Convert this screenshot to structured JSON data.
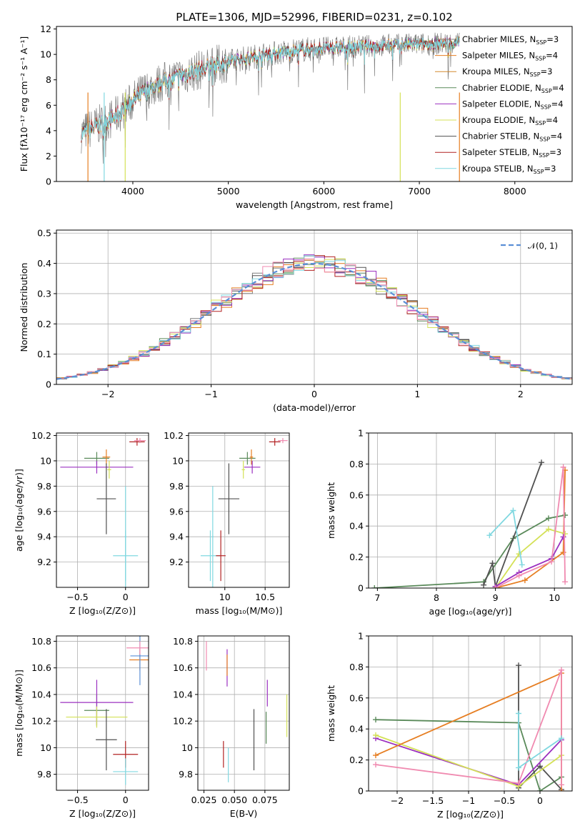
{
  "chart_data": [
    {
      "id": "spectrum",
      "type": "line",
      "title": "PLATE=1306, MJD=52996, FIBERID=0231, z=0.102",
      "xlabel": "wavelength [Angstrom, rest frame]",
      "ylabel": "Flux [fλ10⁻¹⁷ erg cm⁻² s⁻¹ A⁻¹]",
      "xlim": [
        3200,
        8600
      ],
      "ylim": [
        0,
        12.2
      ],
      "xticks": [
        4000,
        5000,
        6000,
        7000,
        8000
      ],
      "yticks": [
        0,
        2,
        4,
        6,
        8,
        10,
        12
      ],
      "legend_position": "right",
      "data_wavelength_range": [
        3460,
        7420
      ],
      "continuum": {
        "x": [
          3460,
          3600,
          3800,
          3950,
          4100,
          4300,
          4500,
          4800,
          5100,
          5400,
          5700,
          6000,
          6300,
          6600,
          7000,
          7420
        ],
        "y": [
          3.8,
          4.3,
          5.0,
          6.0,
          7.0,
          7.8,
          8.3,
          9.0,
          9.6,
          10.0,
          10.3,
          10.5,
          10.6,
          10.7,
          10.8,
          10.9
        ]
      },
      "series": [
        {
          "name": "Chabrier MILES, N",
          "sub": "SSP",
          "suffix": "=3",
          "color": "#7f7f7f"
        },
        {
          "name": "Salpeter MILES, N",
          "sub": "SSP",
          "suffix": "=4",
          "color": "#e67e22"
        },
        {
          "name": "Kroupa MILES, N",
          "sub": "SSP",
          "suffix": "=3",
          "color": "#d48a2f"
        },
        {
          "name": "Chabrier ELODIE, N",
          "sub": "SSP",
          "suffix": "=4",
          "color": "#5a8a5a"
        },
        {
          "name": "Salpeter ELODIE, N",
          "sub": "SSP",
          "suffix": "=4",
          "color": "#9b30c0"
        },
        {
          "name": "Kroupa ELODIE, N",
          "sub": "SSP",
          "suffix": "=4",
          "color": "#d4e157"
        },
        {
          "name": "Chabrier STELIB, N",
          "sub": "SSP",
          "suffix": "=4",
          "color": "#505050"
        },
        {
          "name": "Salpeter STELIB, N",
          "sub": "SSP",
          "suffix": "=3",
          "color": "#b22222"
        },
        {
          "name": "Kroupa STELIB, N",
          "sub": "SSP",
          "suffix": "=3",
          "color": "#80d8e0"
        }
      ]
    },
    {
      "id": "residuals",
      "type": "step",
      "xlabel": "(data-model)/error",
      "ylabel": "Normed distribution",
      "xlim": [
        -2.5,
        2.5
      ],
      "ylim": [
        0,
        0.51
      ],
      "xticks": [
        -2,
        -1,
        0,
        1,
        2
      ],
      "yticks": [
        0.0,
        0.1,
        0.2,
        0.3,
        0.4,
        0.5
      ],
      "bin_width": 0.1,
      "gaussian_label": "𝒩(0, 1)",
      "gaussian_color": "#5b8fd6",
      "legend_position": "upper right",
      "histograms": [
        {
          "color": "#7f7f7f",
          "offset": 0.0
        },
        {
          "color": "#e67e22",
          "offset": 0.015
        },
        {
          "color": "#5a8a5a",
          "offset": -0.012
        },
        {
          "color": "#9b30c0",
          "offset": 0.02
        },
        {
          "color": "#d4e157",
          "offset": -0.018
        },
        {
          "color": "#505050",
          "offset": 0.01
        },
        {
          "color": "#b22222",
          "offset": -0.008
        },
        {
          "color": "#80d8e0",
          "offset": 0.005
        },
        {
          "color": "#f08ab0",
          "offset": -0.015
        }
      ]
    },
    {
      "id": "Z_age",
      "type": "errorbar",
      "xlabel": "Z [log₁₀(Z/Z⊙)]",
      "ylabel": "age  [log₁₀(age/yr)]",
      "xlim": [
        -0.72,
        0.24
      ],
      "ylim": [
        9.0,
        10.22
      ],
      "xticks": [
        -0.5,
        0.0
      ],
      "yticks": [
        9.2,
        9.4,
        9.6,
        9.8,
        10.0,
        10.2
      ],
      "points": [
        {
          "x": -0.3,
          "xerr": 0.13,
          "y": 10.02,
          "yerr": 0.05,
          "color": "#5a8a5a"
        },
        {
          "x": -0.2,
          "xerr": 0.04,
          "y": 10.03,
          "yerr": 0.06,
          "color": "#e67e22"
        },
        {
          "x": -0.3,
          "xerr": 0.38,
          "y": 9.95,
          "yerr": 0.05,
          "color": "#9b30c0"
        },
        {
          "x": -0.17,
          "xerr": 0.02,
          "y": 9.93,
          "yerr": 0.07,
          "color": "#d4e157"
        },
        {
          "x": -0.2,
          "xerr": 0.1,
          "y": 9.7,
          "yerr": 0.28,
          "color": "#505050"
        },
        {
          "x": 0.12,
          "xerr": 0.08,
          "y": 10.15,
          "yerr": 0.03,
          "color": "#b22222"
        },
        {
          "x": 0.15,
          "xerr": 0.06,
          "y": 10.16,
          "yerr": 0.02,
          "color": "#f08ab0"
        },
        {
          "x": 0.0,
          "xerr": 0.13,
          "y": 9.25,
          "yerr": 0.2,
          "color": "#80d8e0"
        },
        {
          "x": 0.0,
          "xerr": 0.01,
          "y": 9.4,
          "yerr": 0.4,
          "color": "#80d8e0"
        }
      ]
    },
    {
      "id": "mass_age",
      "type": "errorbar",
      "xlabel": "mass [log₁₀(M/M⊙)]",
      "ylabel": "",
      "xlim": [
        9.55,
        10.8
      ],
      "ylim": [
        9.0,
        10.22
      ],
      "xticks": [
        10.0,
        10.5
      ],
      "yticks": [
        9.2,
        9.4,
        9.6,
        9.8,
        10.0,
        10.2
      ],
      "points": [
        {
          "x": 10.28,
          "xerr": 0.1,
          "y": 10.02,
          "yerr": 0.05,
          "color": "#5a8a5a"
        },
        {
          "x": 10.33,
          "xerr": 0.02,
          "y": 10.03,
          "yerr": 0.06,
          "color": "#e67e22"
        },
        {
          "x": 10.34,
          "xerr": 0.1,
          "y": 9.95,
          "yerr": 0.05,
          "color": "#9b30c0"
        },
        {
          "x": 10.23,
          "xerr": 0.02,
          "y": 9.93,
          "yerr": 0.07,
          "color": "#d4e157"
        },
        {
          "x": 10.05,
          "xerr": 0.13,
          "y": 9.7,
          "yerr": 0.28,
          "color": "#505050"
        },
        {
          "x": 10.62,
          "xerr": 0.07,
          "y": 10.15,
          "yerr": 0.03,
          "color": "#b22222"
        },
        {
          "x": 10.72,
          "xerr": 0.06,
          "y": 10.16,
          "yerr": 0.02,
          "color": "#f08ab0"
        },
        {
          "x": 9.82,
          "xerr": 0.12,
          "y": 9.25,
          "yerr": 0.2,
          "color": "#80d8e0"
        },
        {
          "x": 9.95,
          "xerr": 0.06,
          "y": 9.25,
          "yerr": 0.2,
          "color": "#b22222"
        },
        {
          "x": 9.85,
          "xerr": 0.01,
          "y": 9.4,
          "yerr": 0.4,
          "color": "#80d8e0"
        }
      ]
    },
    {
      "id": "age_weight",
      "type": "line",
      "xlabel": "age  [log₁₀(age/yr)]",
      "ylabel": "mass weight",
      "xlim": [
        6.85,
        10.3
      ],
      "ylim": [
        0,
        1.0
      ],
      "xticks": [
        7,
        8,
        9,
        10
      ],
      "yticks": [
        0.0,
        0.2,
        0.4,
        0.6,
        0.8,
        1.0
      ],
      "series": [
        {
          "color": "#5a8a5a",
          "x": [
            6.95,
            8.8,
            9.3,
            9.9,
            10.18
          ],
          "y": [
            0.0,
            0.04,
            0.32,
            0.45,
            0.47
          ]
        },
        {
          "color": "#505050",
          "x": [
            8.8,
            8.95,
            9.0,
            9.78
          ],
          "y": [
            0.02,
            0.16,
            0.01,
            0.81
          ]
        },
        {
          "color": "#e67e22",
          "x": [
            9.0,
            9.5,
            10.15,
            10.18
          ],
          "y": [
            0.0,
            0.05,
            0.23,
            0.76
          ]
        },
        {
          "color": "#d4e157",
          "x": [
            9.0,
            9.4,
            9.9,
            10.18
          ],
          "y": [
            0.0,
            0.22,
            0.38,
            0.35
          ]
        },
        {
          "color": "#9b30c0",
          "x": [
            9.0,
            9.4,
            9.95,
            10.15
          ],
          "y": [
            0.01,
            0.1,
            0.19,
            0.33
          ]
        },
        {
          "color": "#f08ab0",
          "x": [
            9.0,
            9.4,
            9.95,
            10.15,
            10.18
          ],
          "y": [
            0.0,
            0.08,
            0.17,
            0.78,
            0.04
          ]
        },
        {
          "color": "#80d8e0",
          "x": [
            8.9,
            9.3,
            9.45
          ],
          "y": [
            0.34,
            0.5,
            0.15
          ]
        }
      ]
    },
    {
      "id": "Z_mass",
      "type": "errorbar",
      "xlabel": "Z [log₁₀(Z/Z⊙)]",
      "ylabel": "mass [log₁₀(M/M⊙)]",
      "xlim": [
        -0.72,
        0.24
      ],
      "ylim": [
        9.68,
        10.84
      ],
      "xticks": [
        -0.5,
        0.0
      ],
      "yticks": [
        9.8,
        10.0,
        10.2,
        10.4,
        10.6,
        10.8
      ],
      "points": [
        {
          "x": -0.3,
          "xerr": 0.13,
          "y": 10.28,
          "yerr": 0.12,
          "color": "#5a8a5a"
        },
        {
          "x": -0.3,
          "xerr": 0.38,
          "y": 10.34,
          "yerr": 0.17,
          "color": "#9b30c0"
        },
        {
          "x": -0.3,
          "xerr": 0.32,
          "y": 10.23,
          "yerr": 0.08,
          "color": "#d4e157"
        },
        {
          "x": -0.2,
          "xerr": 0.11,
          "y": 10.06,
          "yerr": 0.23,
          "color": "#505050"
        },
        {
          "x": 0.0,
          "xerr": 0.13,
          "y": 9.95,
          "yerr": 0.1,
          "color": "#b22222"
        },
        {
          "x": 0.0,
          "xerr": 0.13,
          "y": 9.82,
          "yerr": 0.1,
          "color": "#80d8e0"
        },
        {
          "x": 0.15,
          "xerr": 0.11,
          "y": 10.66,
          "yerr": 0.08,
          "color": "#e67e22"
        },
        {
          "x": 0.15,
          "xerr": 0.1,
          "y": 10.69,
          "yerr": 0.22,
          "color": "#5b8fd6"
        },
        {
          "x": 0.15,
          "xerr": 0.14,
          "y": 10.75,
          "yerr": 0.05,
          "color": "#f08ab0"
        }
      ]
    },
    {
      "id": "ebv_mass",
      "type": "errorbar",
      "xlabel": "E(B-V)",
      "ylabel": "",
      "xlim": [
        0.02,
        0.095
      ],
      "ylim": [
        9.68,
        10.84
      ],
      "xticks": [
        0.025,
        0.05,
        0.075
      ],
      "xtick_labels": [
        "0.025",
        "0.050",
        "0.075"
      ],
      "yticks": [
        9.8,
        10.0,
        10.2,
        10.4,
        10.6,
        10.8
      ],
      "points": [
        {
          "x": 0.027,
          "xerr": 0.0,
          "y": 10.69,
          "yerr": 0.11,
          "color": "#f08ab0"
        },
        {
          "x": 0.044,
          "xerr": 0.0,
          "y": 10.6,
          "yerr": 0.14,
          "color": "#9b30c0"
        },
        {
          "x": 0.044,
          "xerr": 0.0,
          "y": 10.62,
          "yerr": 0.08,
          "color": "#e67e22"
        },
        {
          "x": 0.041,
          "xerr": 0.0,
          "y": 9.95,
          "yerr": 0.1,
          "color": "#b22222"
        },
        {
          "x": 0.045,
          "xerr": 0.0,
          "y": 9.87,
          "yerr": 0.13,
          "color": "#80d8e0"
        },
        {
          "x": 0.066,
          "xerr": 0.0,
          "y": 10.06,
          "yerr": 0.23,
          "color": "#505050"
        },
        {
          "x": 0.077,
          "xerr": 0.0,
          "y": 10.41,
          "yerr": 0.1,
          "color": "#9b30c0"
        },
        {
          "x": 0.076,
          "xerr": 0.0,
          "y": 10.15,
          "yerr": 0.12,
          "color": "#5a8a5a"
        },
        {
          "x": 0.093,
          "xerr": 0.0,
          "y": 10.24,
          "yerr": 0.16,
          "color": "#d4e157"
        }
      ]
    },
    {
      "id": "Z_weight",
      "type": "line",
      "xlabel": "Z [log₁₀(Z/Z⊙)]",
      "ylabel": "mass weight",
      "xlim": [
        -2.4,
        0.45
      ],
      "ylim": [
        0,
        1.0
      ],
      "xticks": [
        -2.0,
        -1.5,
        -1.0,
        -0.5,
        0.0
      ],
      "yticks": [
        0.0,
        0.2,
        0.4,
        0.6,
        0.8,
        1.0
      ],
      "series": [
        {
          "color": "#5a8a5a",
          "x": [
            -2.3,
            -0.3,
            0.0,
            0.3
          ],
          "y": [
            0.46,
            0.44,
            0.0,
            0.09
          ]
        },
        {
          "color": "#505050",
          "x": [
            -0.3,
            -0.3,
            0.0,
            0.3
          ],
          "y": [
            0.81,
            0.02,
            0.16,
            0.01
          ]
        },
        {
          "color": "#9b30c0",
          "x": [
            -2.3,
            -0.3,
            0.3
          ],
          "y": [
            0.34,
            0.04,
            0.33
          ]
        },
        {
          "color": "#d4e157",
          "x": [
            -2.3,
            -0.3,
            0.3
          ],
          "y": [
            0.36,
            0.03,
            0.23
          ]
        },
        {
          "color": "#e67e22",
          "x": [
            -2.3,
            0.3,
            0.3
          ],
          "y": [
            0.23,
            0.76,
            0.0
          ]
        },
        {
          "color": "#f08ab0",
          "x": [
            -2.3,
            -0.3,
            0.3,
            0.3
          ],
          "y": [
            0.17,
            0.05,
            0.78,
            0.04
          ]
        },
        {
          "color": "#80d8e0",
          "x": [
            -0.3,
            -0.3,
            0.3
          ],
          "y": [
            0.5,
            0.15,
            0.34
          ]
        }
      ]
    }
  ]
}
